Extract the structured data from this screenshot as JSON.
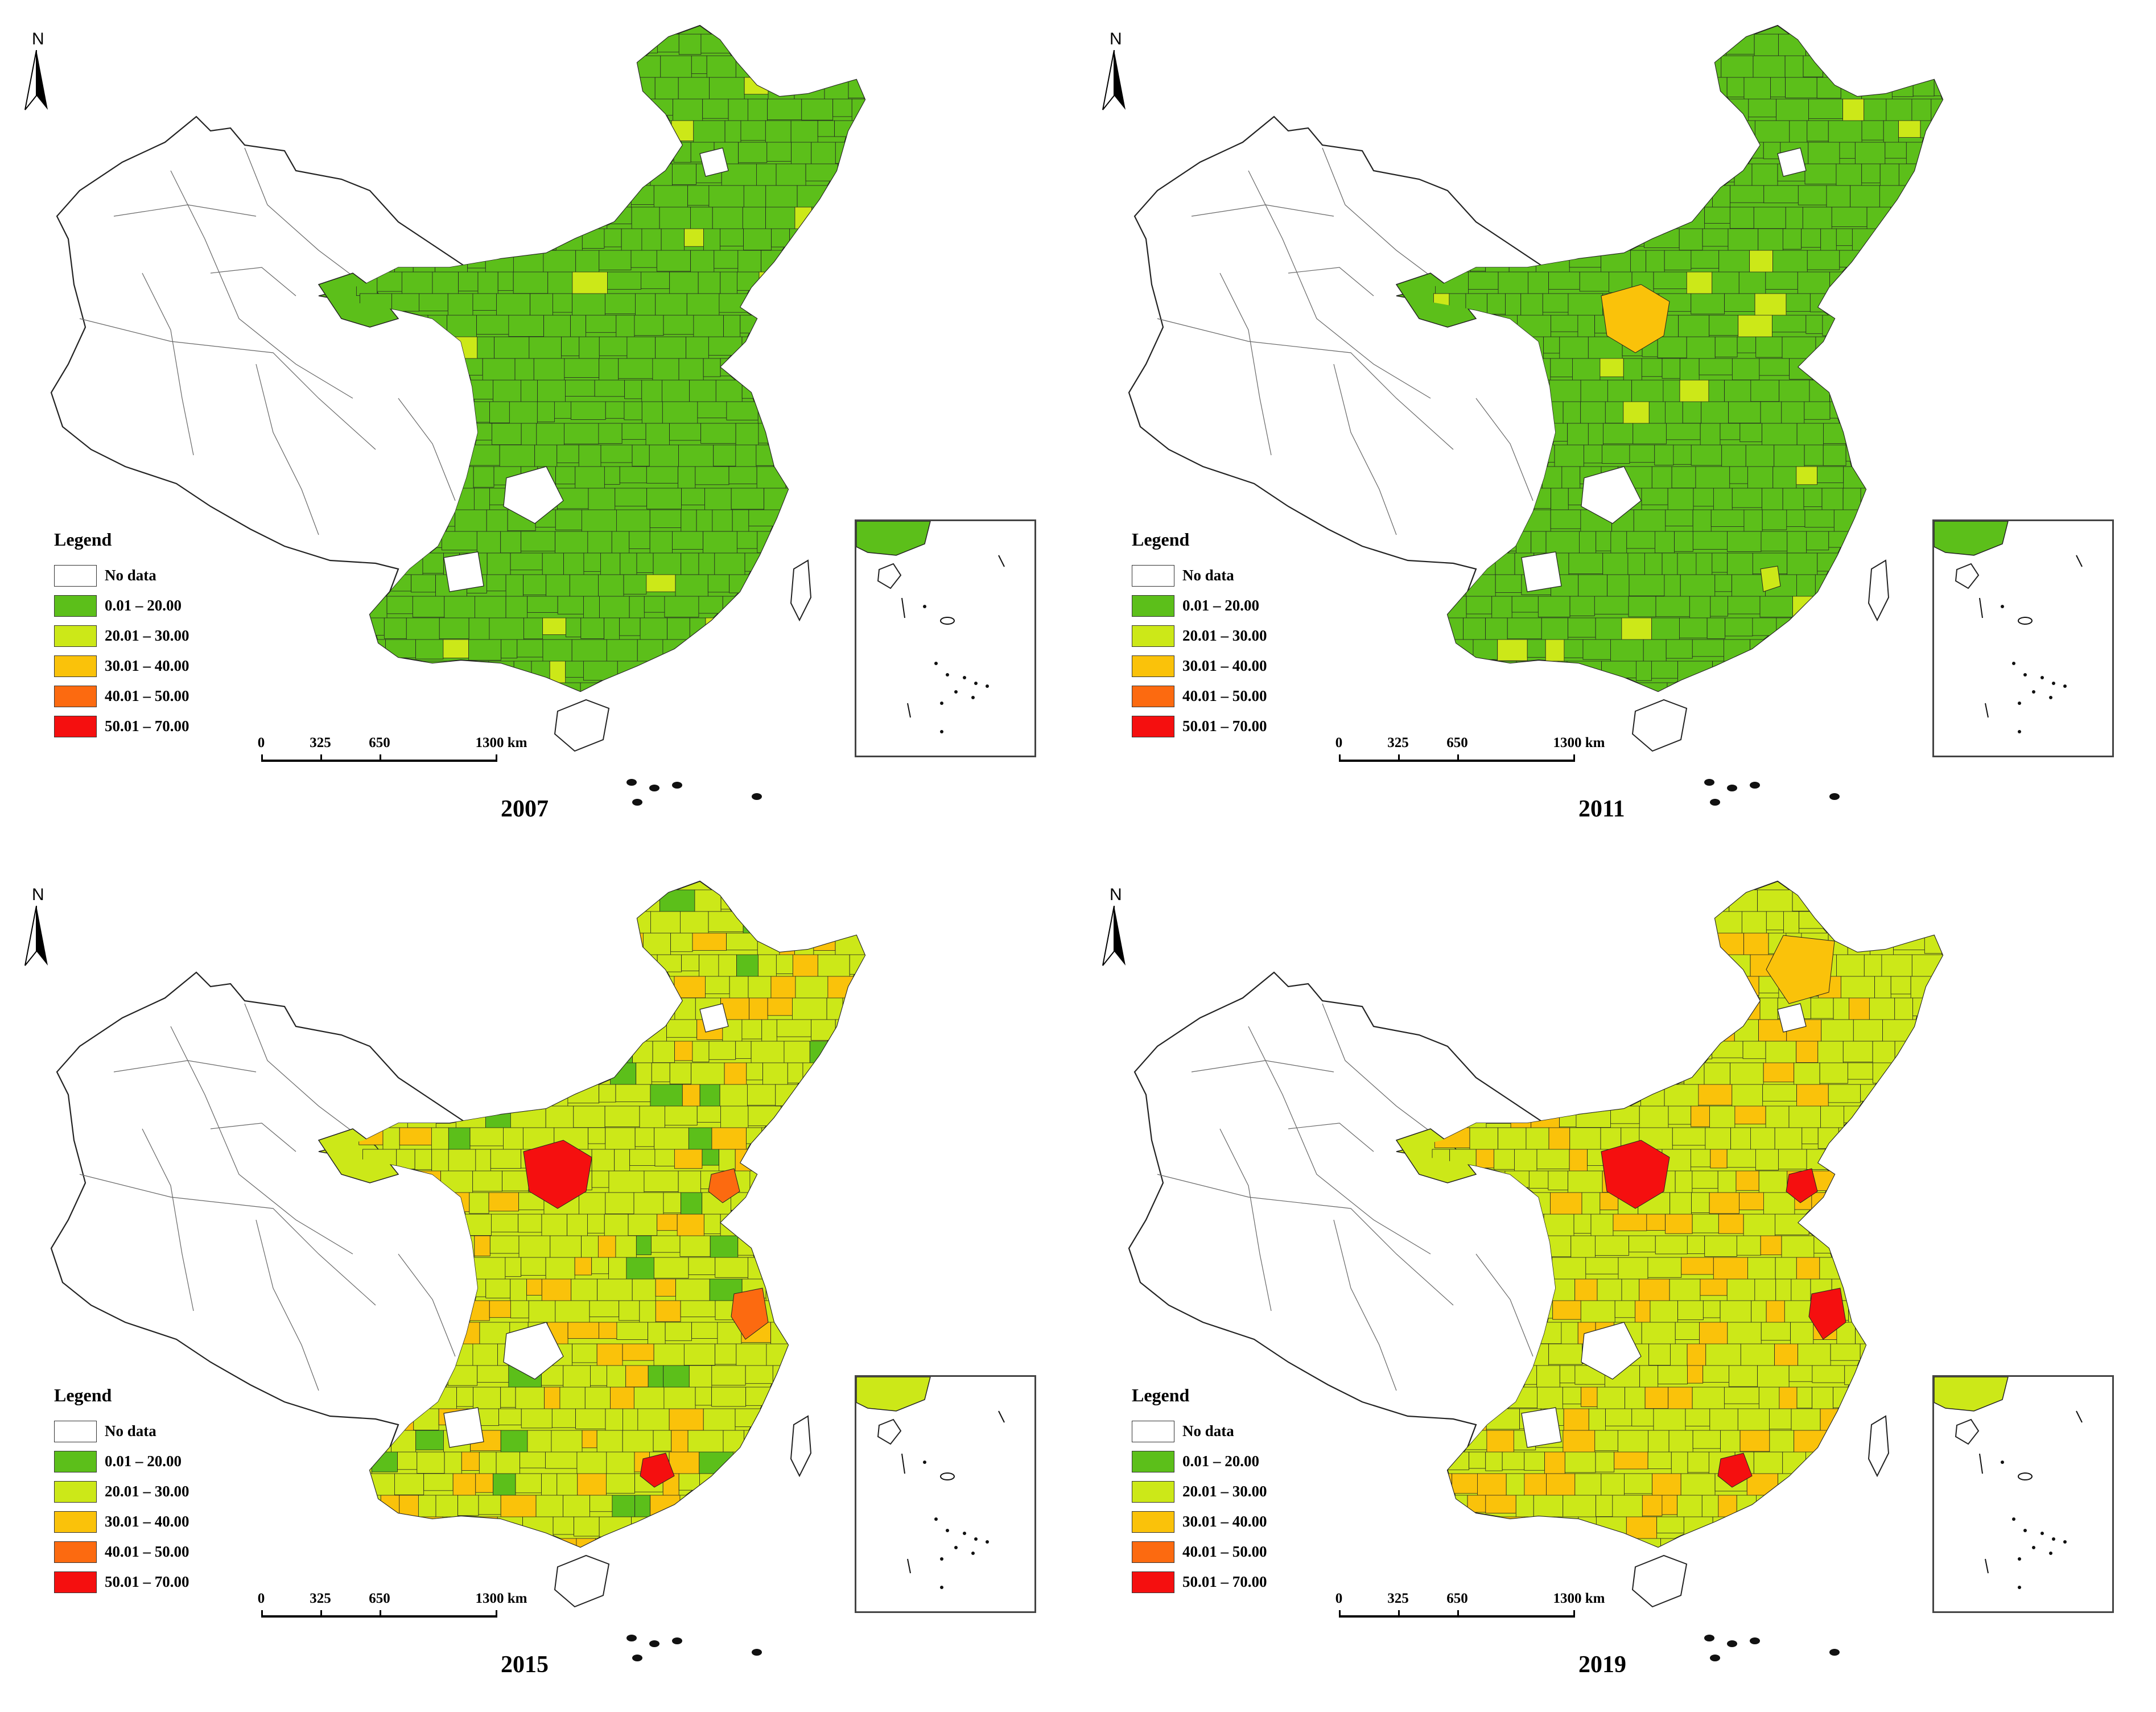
{
  "legend": {
    "title": "Legend",
    "classes": [
      {
        "label": "No data",
        "color": "#ffffff"
      },
      {
        "label": "0.01 – 20.00",
        "color": "#5cbf1a"
      },
      {
        "label": "20.01 – 30.00",
        "color": "#cce818"
      },
      {
        "label": "30.01 – 40.00",
        "color": "#fac20a"
      },
      {
        "label": "40.01 – 50.00",
        "color": "#fc6a10"
      },
      {
        "label": "50.01 – 70.00",
        "color": "#f50f0f"
      }
    ]
  },
  "north_arrow": {
    "label": "N",
    "icon": "north-arrow-icon"
  },
  "scale_bar": {
    "labels": [
      "0",
      "325",
      "650",
      "1300 km"
    ]
  },
  "panels": [
    {
      "year": "2007",
      "dominant_class": 1,
      "hotspots": []
    },
    {
      "year": "2011",
      "dominant_class": 1,
      "hotspots": [
        {
          "region": "north-central",
          "class": 3
        },
        {
          "region": "south-coast",
          "class": 2
        }
      ]
    },
    {
      "year": "2015",
      "dominant_class": 2,
      "hotspots": [
        {
          "region": "north-central",
          "class": 5
        },
        {
          "region": "pearl-river-delta",
          "class": 5
        },
        {
          "region": "bohai-coast",
          "class": 4
        },
        {
          "region": "yangtze-delta",
          "class": 4
        }
      ]
    },
    {
      "year": "2019",
      "dominant_class": 2,
      "hotspots": [
        {
          "region": "north-central",
          "class": 5
        },
        {
          "region": "pearl-river-delta",
          "class": 5
        },
        {
          "region": "bohai-coast",
          "class": 5
        },
        {
          "region": "yangtze-delta",
          "class": 5
        },
        {
          "region": "northeast",
          "class": 3
        }
      ]
    }
  ]
}
